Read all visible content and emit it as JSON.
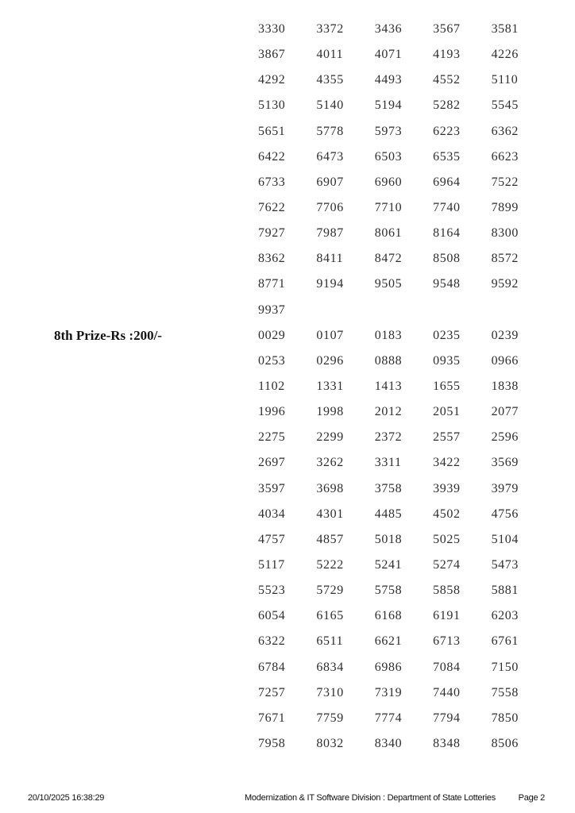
{
  "sections": [
    {
      "label": "",
      "numbers": [
        "3330",
        "3372",
        "3436",
        "3567",
        "3581",
        "3867",
        "4011",
        "4071",
        "4193",
        "4226",
        "4292",
        "4355",
        "4493",
        "4552",
        "5110",
        "5130",
        "5140",
        "5194",
        "5282",
        "5545",
        "5651",
        "5778",
        "5973",
        "6223",
        "6362",
        "6422",
        "6473",
        "6503",
        "6535",
        "6623",
        "6733",
        "6907",
        "6960",
        "6964",
        "7522",
        "7622",
        "7706",
        "7710",
        "7740",
        "7899",
        "7927",
        "7987",
        "8061",
        "8164",
        "8300",
        "8362",
        "8411",
        "8472",
        "8508",
        "8572",
        "8771",
        "9194",
        "9505",
        "9548",
        "9592",
        "9937"
      ]
    },
    {
      "label": "8th Prize-Rs :200/-",
      "numbers": [
        "0029",
        "0107",
        "0183",
        "0235",
        "0239",
        "0253",
        "0296",
        "0888",
        "0935",
        "0966",
        "1102",
        "1331",
        "1413",
        "1655",
        "1838",
        "1996",
        "1998",
        "2012",
        "2051",
        "2077",
        "2275",
        "2299",
        "2372",
        "2557",
        "2596",
        "2697",
        "3262",
        "3311",
        "3422",
        "3569",
        "3597",
        "3698",
        "3758",
        "3939",
        "3979",
        "4034",
        "4301",
        "4485",
        "4502",
        "4756",
        "4757",
        "4857",
        "5018",
        "5025",
        "5104",
        "5117",
        "5222",
        "5241",
        "5274",
        "5473",
        "5523",
        "5729",
        "5758",
        "5858",
        "5881",
        "6054",
        "6165",
        "6168",
        "6191",
        "6203",
        "6322",
        "6511",
        "6621",
        "6713",
        "6761",
        "6784",
        "6834",
        "6986",
        "7084",
        "7150",
        "7257",
        "7310",
        "7319",
        "7440",
        "7558",
        "7671",
        "7759",
        "7774",
        "7794",
        "7850",
        "7958",
        "8032",
        "8340",
        "8348",
        "8506"
      ]
    }
  ],
  "layout": {
    "numbers_per_row": 5
  },
  "footer": {
    "datetime": "20/10/2025 16:38:29",
    "center_text": "Modernization & IT Software Division : Department of State Lotteries",
    "page_label": "Page 2"
  },
  "colors": {
    "background": "#ffffff",
    "number_text": "#2f2f2f",
    "label_text": "#141414",
    "footer_text": "#111111"
  }
}
